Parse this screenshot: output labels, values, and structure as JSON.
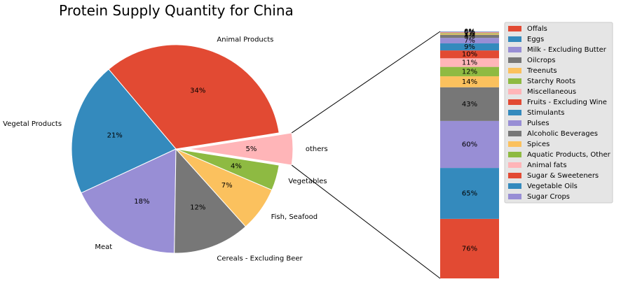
{
  "chart_data": {
    "type": "pie",
    "title": "Protein Supply Quantity for China",
    "pie": {
      "slices": [
        {
          "label": "Animal Products",
          "value": 34,
          "pct_label": "34%",
          "color": "#E24A33"
        },
        {
          "label": "Vegetal Products",
          "value": 21,
          "pct_label": "21%",
          "color": "#348ABD"
        },
        {
          "label": "Meat",
          "value": 18,
          "pct_label": "18%",
          "color": "#988ED5"
        },
        {
          "label": "Cereals - Excluding Beer",
          "value": 12,
          "pct_label": "12%",
          "color": "#777777"
        },
        {
          "label": "Fish, Seafood",
          "value": 7,
          "pct_label": "7%",
          "color": "#FBC15E"
        },
        {
          "label": "Vegetables",
          "value": 4,
          "pct_label": "4%",
          "color": "#8EBA42"
        },
        {
          "label": "others",
          "value": 5,
          "pct_label": "5%",
          "color": "#FFB5B8",
          "exploded": true
        }
      ]
    },
    "breakdown": {
      "type": "stacked-bar",
      "segments": [
        {
          "label": "Offals",
          "value": 76,
          "pct_label": "76%",
          "color": "#E24A33"
        },
        {
          "label": "Eggs",
          "value": 65,
          "pct_label": "65%",
          "color": "#348ABD"
        },
        {
          "label": "Milk - Excluding Butter",
          "value": 60,
          "pct_label": "60%",
          "color": "#988ED5"
        },
        {
          "label": "Oilcrops",
          "value": 43,
          "pct_label": "43%",
          "color": "#777777"
        },
        {
          "label": "Treenuts",
          "value": 14,
          "pct_label": "14%",
          "color": "#FBC15E"
        },
        {
          "label": "Starchy Roots",
          "value": 12,
          "pct_label": "12%",
          "color": "#8EBA42"
        },
        {
          "label": "Miscellaneous",
          "value": 11,
          "pct_label": "11%",
          "color": "#FFB5B8"
        },
        {
          "label": "Fruits - Excluding Wine",
          "value": 10,
          "pct_label": "10%",
          "color": "#E24A33"
        },
        {
          "label": "Stimulants",
          "value": 9,
          "pct_label": "9%",
          "color": "#348ABD"
        },
        {
          "label": "Pulses",
          "value": 7,
          "pct_label": "7%",
          "color": "#988ED5"
        },
        {
          "label": "Alcoholic Beverages",
          "value": 4,
          "pct_label": "4%",
          "color": "#777777"
        },
        {
          "label": "Spices",
          "value": 1,
          "pct_label": "1%",
          "color": "#FBC15E"
        },
        {
          "label": "Aquatic Products, Other",
          "value": 1,
          "pct_label": "1%",
          "color": "#8EBA42"
        },
        {
          "label": "Animal fats",
          "value": 1,
          "pct_label": "1%",
          "color": "#FFB5B8"
        },
        {
          "label": "Sugar & Sweeteners",
          "value": 0,
          "pct_label": "0%",
          "color": "#E24A33"
        },
        {
          "label": "Vegetable Oils",
          "value": 0,
          "pct_label": "0%",
          "color": "#348ABD"
        },
        {
          "label": "Sugar Crops",
          "value": 0,
          "pct_label": "0%",
          "color": "#988ED5"
        }
      ]
    },
    "legend_position": "right"
  }
}
